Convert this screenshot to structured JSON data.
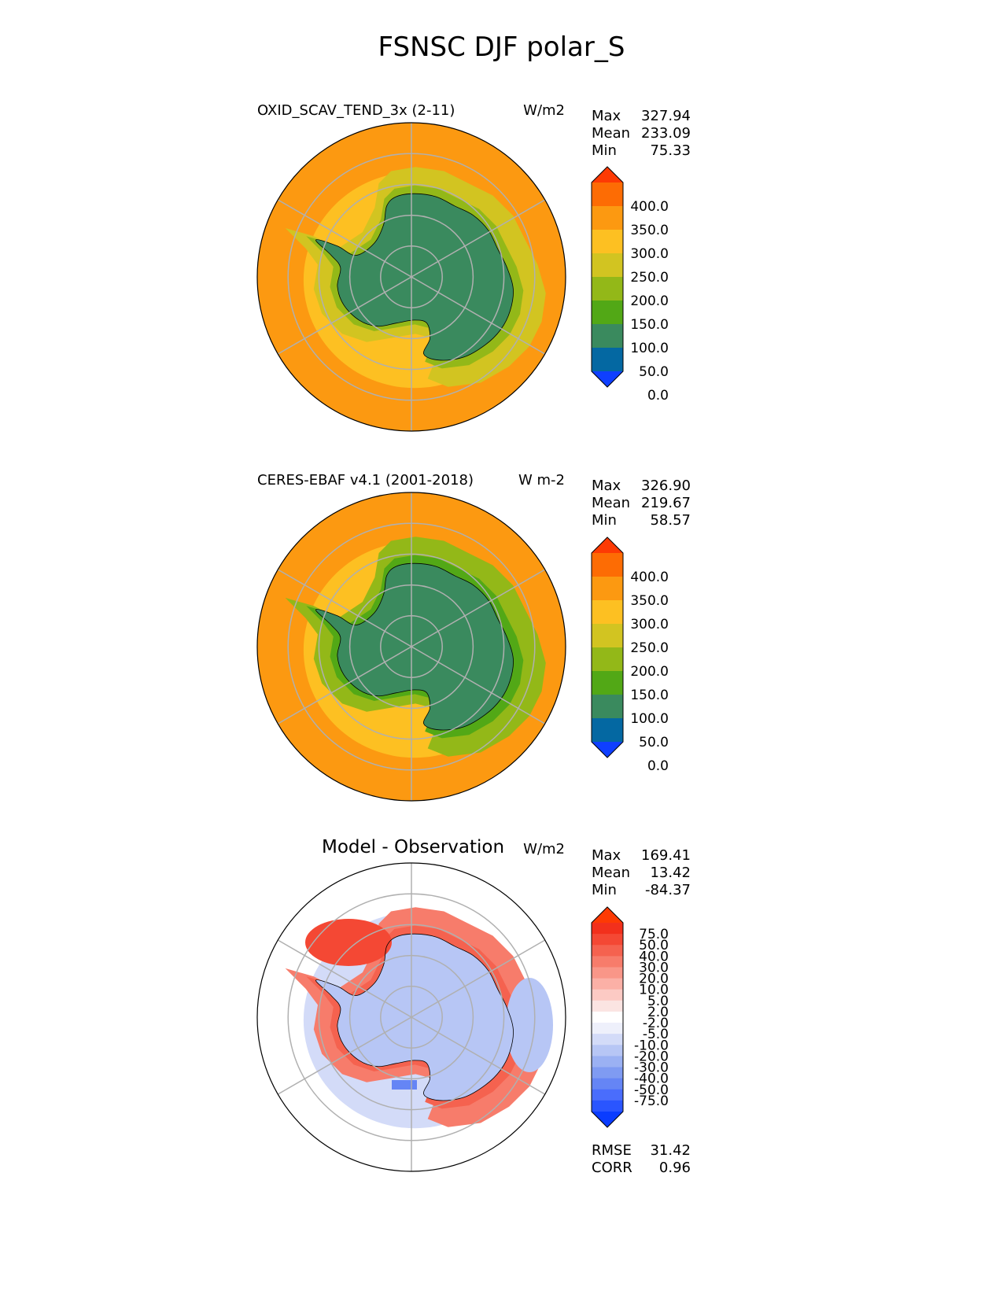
{
  "figure": {
    "title": "FSNSC DJF polar_S"
  },
  "chart_data": [
    {
      "type": "heatmap",
      "title": "OXID_SCAV_TEND_3x (2-11)",
      "units": "W/m2",
      "projection": "south polar stereographic",
      "stats": [
        {
          "label": "Max",
          "value": "327.94"
        },
        {
          "label": "Mean",
          "value": "233.09"
        },
        {
          "label": "Min",
          "value": "75.33"
        }
      ],
      "colorbar": {
        "ticks": [
          "400.0",
          "350.0",
          "300.0",
          "250.0",
          "200.0",
          "150.0",
          "100.0",
          "50.0",
          "0.0"
        ],
        "colors": [
          "#0f3fff",
          "#0468a2",
          "#3a8a5e",
          "#52a816",
          "#93b818",
          "#d2c421",
          "#fdc022",
          "#fc9911",
          "#fd6c04",
          "#fd3a04"
        ],
        "extend": "both"
      },
      "field": {
        "pole_value": 75,
        "coast_value": 175,
        "shelf_value": 235,
        "mid_value": 275,
        "outer_value": 325
      }
    },
    {
      "type": "heatmap",
      "title": "CERES-EBAF v4.1 (2001-2018)",
      "units": "W m-2",
      "projection": "south polar stereographic",
      "stats": [
        {
          "label": "Max",
          "value": "326.90"
        },
        {
          "label": "Mean",
          "value": "219.67"
        },
        {
          "label": "Min",
          "value": "58.57"
        }
      ],
      "colorbar": {
        "ticks": [
          "400.0",
          "350.0",
          "300.0",
          "250.0",
          "200.0",
          "150.0",
          "100.0",
          "50.0",
          "0.0"
        ],
        "colors": [
          "#0f3fff",
          "#0468a2",
          "#3a8a5e",
          "#52a816",
          "#93b818",
          "#d2c421",
          "#fdc022",
          "#fc9911",
          "#fd6c04",
          "#fd3a04"
        ],
        "extend": "both"
      },
      "field": {
        "pole_value": 75,
        "coast_value": 125,
        "shelf_value": 175,
        "mid_value": 275,
        "outer_value": 325
      }
    },
    {
      "type": "heatmap",
      "title": "Model - Observation",
      "units": "W/m2",
      "projection": "south polar stereographic",
      "stats": [
        {
          "label": "Max",
          "value": "169.41"
        },
        {
          "label": "Mean",
          "value": "13.42"
        },
        {
          "label": "Min",
          "value": "-84.37"
        }
      ],
      "metrics": [
        {
          "label": "RMSE",
          "value": "31.42"
        },
        {
          "label": "CORR",
          "value": "0.96"
        }
      ],
      "colorbar": {
        "ticks": [
          "75.0",
          "50.0",
          "40.0",
          "30.0",
          "20.0",
          "10.0",
          "5.0",
          "2.0",
          "-2.0",
          "-5.0",
          "-10.0",
          "-20.0",
          "-30.0",
          "-40.0",
          "-50.0",
          "-75.0"
        ],
        "colors": [
          "#0a3cff",
          "#2a55ff",
          "#4a6dfc",
          "#6585f5",
          "#7f9bf2",
          "#9bb1f3",
          "#b7c6f5",
          "#d3dbf8",
          "#eef0fb",
          "#ffffff",
          "#fbe4e2",
          "#fccac4",
          "#fbb0a6",
          "#f99688",
          "#f77c6b",
          "#f5624f",
          "#f44834",
          "#f2301c",
          "#fd3a04"
        ],
        "extend": "both"
      },
      "field": {
        "pole_value": -10,
        "coast_value": 60,
        "shelf_value": 45,
        "mid_value": -5,
        "outer_value": 3
      }
    }
  ]
}
